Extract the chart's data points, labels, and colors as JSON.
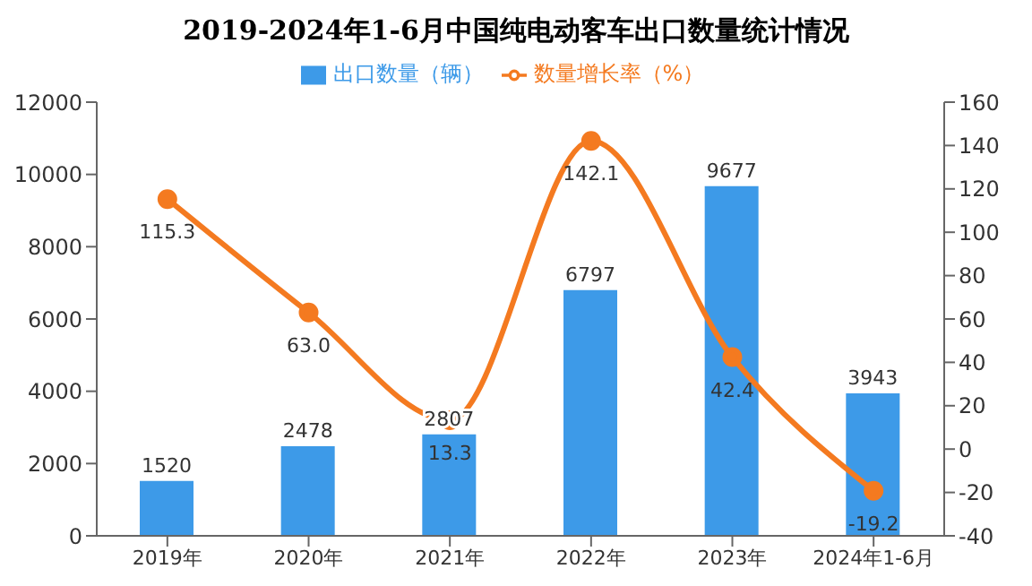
{
  "chart_data": {
    "type": "bar",
    "title": "2019-2024年1-6月中国纯电动客车出口数量统计情况",
    "categories": [
      "2019年",
      "2020年",
      "2021年",
      "2022年",
      "2023年",
      "2024年1-6月"
    ],
    "series": [
      {
        "name": "出口数量（辆）",
        "color": "#3d9ae8",
        "values": [
          1520,
          2478,
          2807,
          6797,
          9677,
          3943
        ]
      },
      {
        "name": "数量增长率（%）",
        "type": "line",
        "axis": "y2",
        "color": "#f47a20",
        "values": [
          115.3,
          63.0,
          13.3,
          142.1,
          42.4,
          -19.2
        ],
        "value_labels": [
          "115.3",
          "63.0",
          "13.3",
          "142.1",
          "42.4",
          "-19.2"
        ]
      }
    ],
    "ylim": [
      0,
      12000
    ],
    "yticks": [
      0,
      2000,
      4000,
      6000,
      8000,
      10000,
      12000
    ],
    "y2lim": [
      -40,
      160
    ],
    "y2ticks": [
      -40,
      -20,
      0,
      20,
      40,
      60,
      80,
      100,
      120,
      140,
      160
    ],
    "data_labels": true,
    "legend": "top",
    "marker": "circle",
    "line_style": "solid",
    "grid": false
  }
}
